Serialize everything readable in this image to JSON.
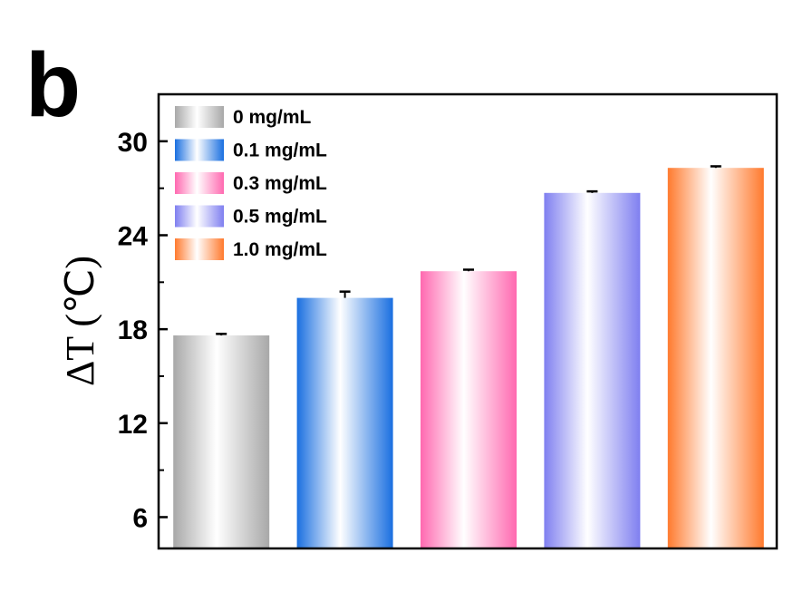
{
  "panel_label": "b",
  "chart_data": {
    "type": "bar",
    "title": "",
    "xlabel": "",
    "ylabel": "ΔT (℃)",
    "ylim": [
      4,
      33
    ],
    "yticks": [
      6,
      12,
      18,
      24,
      30
    ],
    "yticks_labels": [
      "6",
      "12",
      "18",
      "24",
      "30"
    ],
    "minor_ticks": true,
    "grid": false,
    "legend_position": "top-left",
    "categories": [
      "0 mg/mL",
      "0.1 mg/mL",
      "0.3 mg/mL",
      "0.5 mg/mL",
      "1.0 mg/mL"
    ],
    "values": [
      17.6,
      20.0,
      21.7,
      26.7,
      28.3
    ],
    "errors": [
      0.1,
      0.4,
      0.1,
      0.1,
      0.1
    ],
    "colors": [
      "#a8a8a8",
      "#1a6fe0",
      "#ff69b0",
      "#7f7ff0",
      "#ff7a2e"
    ],
    "legend": [
      {
        "label": "0 mg/mL",
        "color": "#a8a8a8"
      },
      {
        "label": "0.1 mg/mL",
        "color": "#1a6fe0"
      },
      {
        "label": "0.3 mg/mL",
        "color": "#ff69b0"
      },
      {
        "label": "0.5 mg/mL",
        "color": "#7f7ff0"
      },
      {
        "label": "1.0 mg/mL",
        "color": "#ff7a2e"
      }
    ]
  }
}
